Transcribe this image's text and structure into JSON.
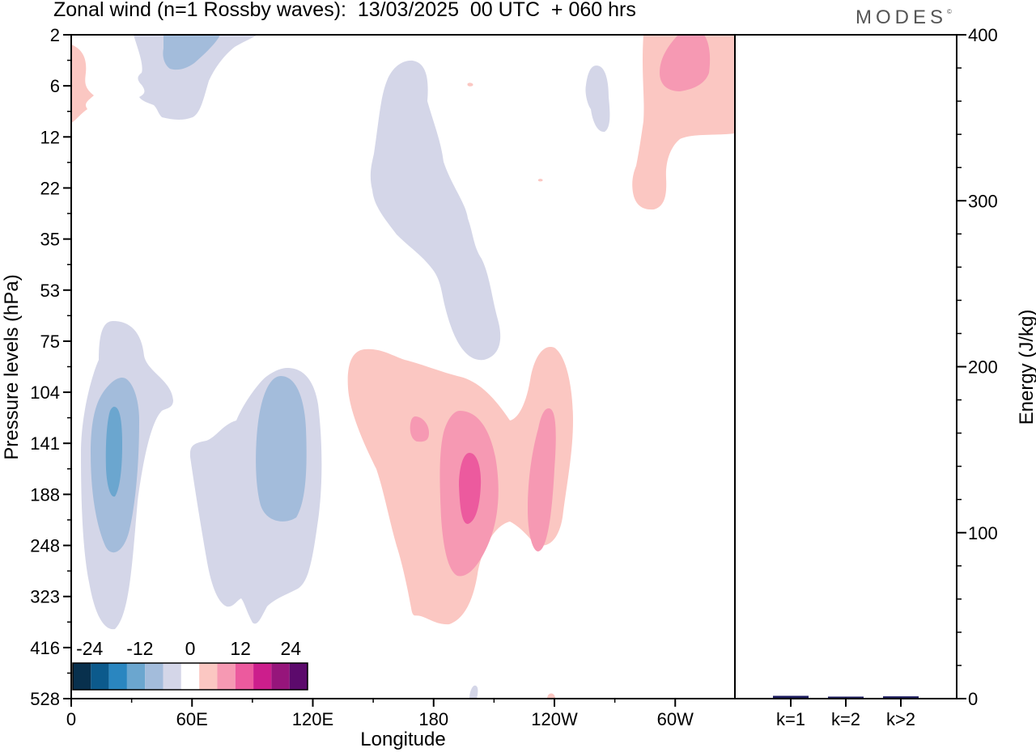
{
  "title": "Zonal wind (n=1 Rossby waves):  13/03/2025  00 UTC  + 060 hrs",
  "brand": "MODES",
  "brand_mark": "©",
  "chart_data": [
    {
      "type": "heatmap",
      "title": "Zonal wind (n=1 Rossby waves):  13/03/2025  00 UTC  + 060 hrs",
      "xlabel": "Longitude",
      "ylabel": "Pressure levels (hPa)",
      "x_ticks": [
        "0",
        "60E",
        "120E",
        "180",
        "120W",
        "60W"
      ],
      "y_ticks": [
        "2",
        "6",
        "12",
        "22",
        "35",
        "53",
        "75",
        "104",
        "141",
        "188",
        "248",
        "323",
        "416",
        "528"
      ],
      "colorbar": {
        "labels": [
          "-24",
          "-12",
          "0",
          "12",
          "24"
        ],
        "label_values": [
          -24,
          -12,
          0,
          12,
          24
        ],
        "levels": [
          -28,
          -24,
          -20,
          -16,
          -12,
          -8,
          -4,
          4,
          8,
          12,
          16,
          20,
          24,
          28
        ],
        "colors": [
          "#08304d",
          "#0c5a8c",
          "#2a86c0",
          "#6ba6cf",
          "#a3bcdb",
          "#d4d6e8",
          "#ffffff",
          "#fbc7c2",
          "#f699b3",
          "#ec5a9e",
          "#cc1e8c",
          "#96157b",
          "#5c0a6c"
        ]
      },
      "contours": [
        {
          "sign": "negative",
          "level": -4,
          "color": "#d4d6e8",
          "lon": [
            12,
            24
          ],
          "level_range": [
            "75",
            "416"
          ]
        },
        {
          "sign": "negative",
          "level": -8,
          "color": "#a3bcdb",
          "lon": [
            12,
            22
          ],
          "level_range": [
            "104",
            "248"
          ]
        },
        {
          "sign": "negative",
          "level": -12,
          "color": "#6ba6cf",
          "lon": [
            16,
            20
          ],
          "level_range": [
            "123",
            "201"
          ]
        },
        {
          "sign": "negative",
          "level": -4,
          "color": "#d4d6e8",
          "lon": [
            62,
            98
          ],
          "level_range": [
            "104",
            "416"
          ]
        },
        {
          "sign": "negative",
          "level": -8,
          "color": "#a3bcdb",
          "lon": [
            100,
            128
          ],
          "level_range": [
            "114",
            "248"
          ]
        },
        {
          "sign": "negative",
          "level": -4,
          "color": "#d4d6e8",
          "lon": [
            170,
            204
          ],
          "level_range": [
            "4",
            "75"
          ]
        },
        {
          "sign": "negative",
          "level": -4,
          "color": "#d4d6e8",
          "lon": [
            35,
            100
          ],
          "level_range": [
            "2",
            "8"
          ]
        },
        {
          "sign": "negative",
          "level": -8,
          "color": "#a3bcdb",
          "lon": [
            50,
            68
          ],
          "level_range": [
            "2",
            "5"
          ]
        },
        {
          "sign": "negative",
          "level": -4,
          "color": "#d4d6e8",
          "lon": [
            289,
            300
          ],
          "level_range": [
            "5",
            "11"
          ]
        },
        {
          "sign": "positive",
          "level": 4,
          "color": "#fbc7c2",
          "lon": [
            150,
            272
          ],
          "level_range": [
            "75",
            "416"
          ]
        },
        {
          "sign": "positive",
          "level": 8,
          "color": "#f699b3",
          "lon": [
            200,
            225
          ],
          "level_range": [
            "123",
            "323"
          ]
        },
        {
          "sign": "positive",
          "level": 12,
          "color": "#ec5a9e",
          "lon": [
            210,
            218
          ],
          "level_range": [
            "162",
            "248"
          ]
        },
        {
          "sign": "positive",
          "level": 8,
          "color": "#f699b3",
          "lon": [
            248,
            262
          ],
          "level_range": [
            "114",
            "248"
          ]
        },
        {
          "sign": "positive",
          "level": 8,
          "color": "#f699b3",
          "lon": [
            184,
            190
          ],
          "level_range": [
            "123",
            "141"
          ]
        },
        {
          "sign": "positive",
          "level": 4,
          "color": "#fbc7c2",
          "lon": [
            310,
            360
          ],
          "level_range": [
            "2",
            "25"
          ]
        },
        {
          "sign": "positive",
          "level": 8,
          "color": "#f699b3",
          "lon": [
            320,
            345
          ],
          "level_range": [
            "2",
            "5"
          ]
        },
        {
          "sign": "positive",
          "level": 4,
          "color": "#fbc7c2",
          "lon": [
            0,
            8
          ],
          "level_range": [
            "3",
            "9"
          ]
        }
      ]
    },
    {
      "type": "bar",
      "ylabel": "Energy (J/kg)",
      "categories": [
        "k=1",
        "k=2",
        "k>2"
      ],
      "values": [
        1.2,
        0.4,
        0.9
      ],
      "ylim": [
        0,
        400
      ],
      "y_ticks": [
        0,
        100,
        200,
        300,
        400
      ],
      "bar_color": "#1a1a5e"
    }
  ]
}
